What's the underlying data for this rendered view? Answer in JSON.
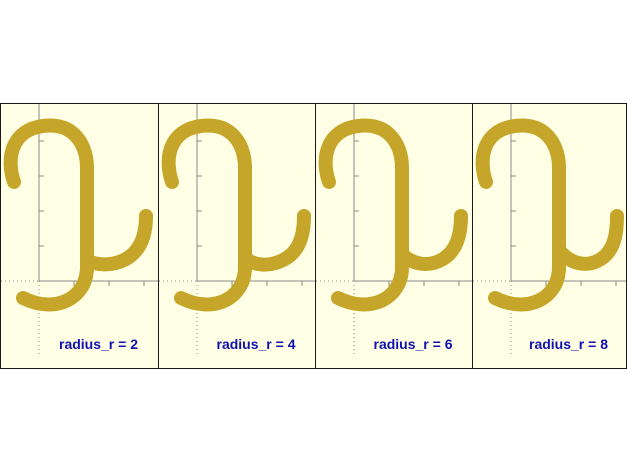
{
  "colors": {
    "background": "#ffffe5",
    "shape": "#c6a62a",
    "label": "#1010b0",
    "frame": "#1a1a1a",
    "axis": "#8a8a8a"
  },
  "panels": [
    {
      "label": "radius_r = 2"
    },
    {
      "label": "radius_r = 4"
    },
    {
      "label": "radius_r = 6"
    },
    {
      "label": "radius_r = 8"
    }
  ]
}
